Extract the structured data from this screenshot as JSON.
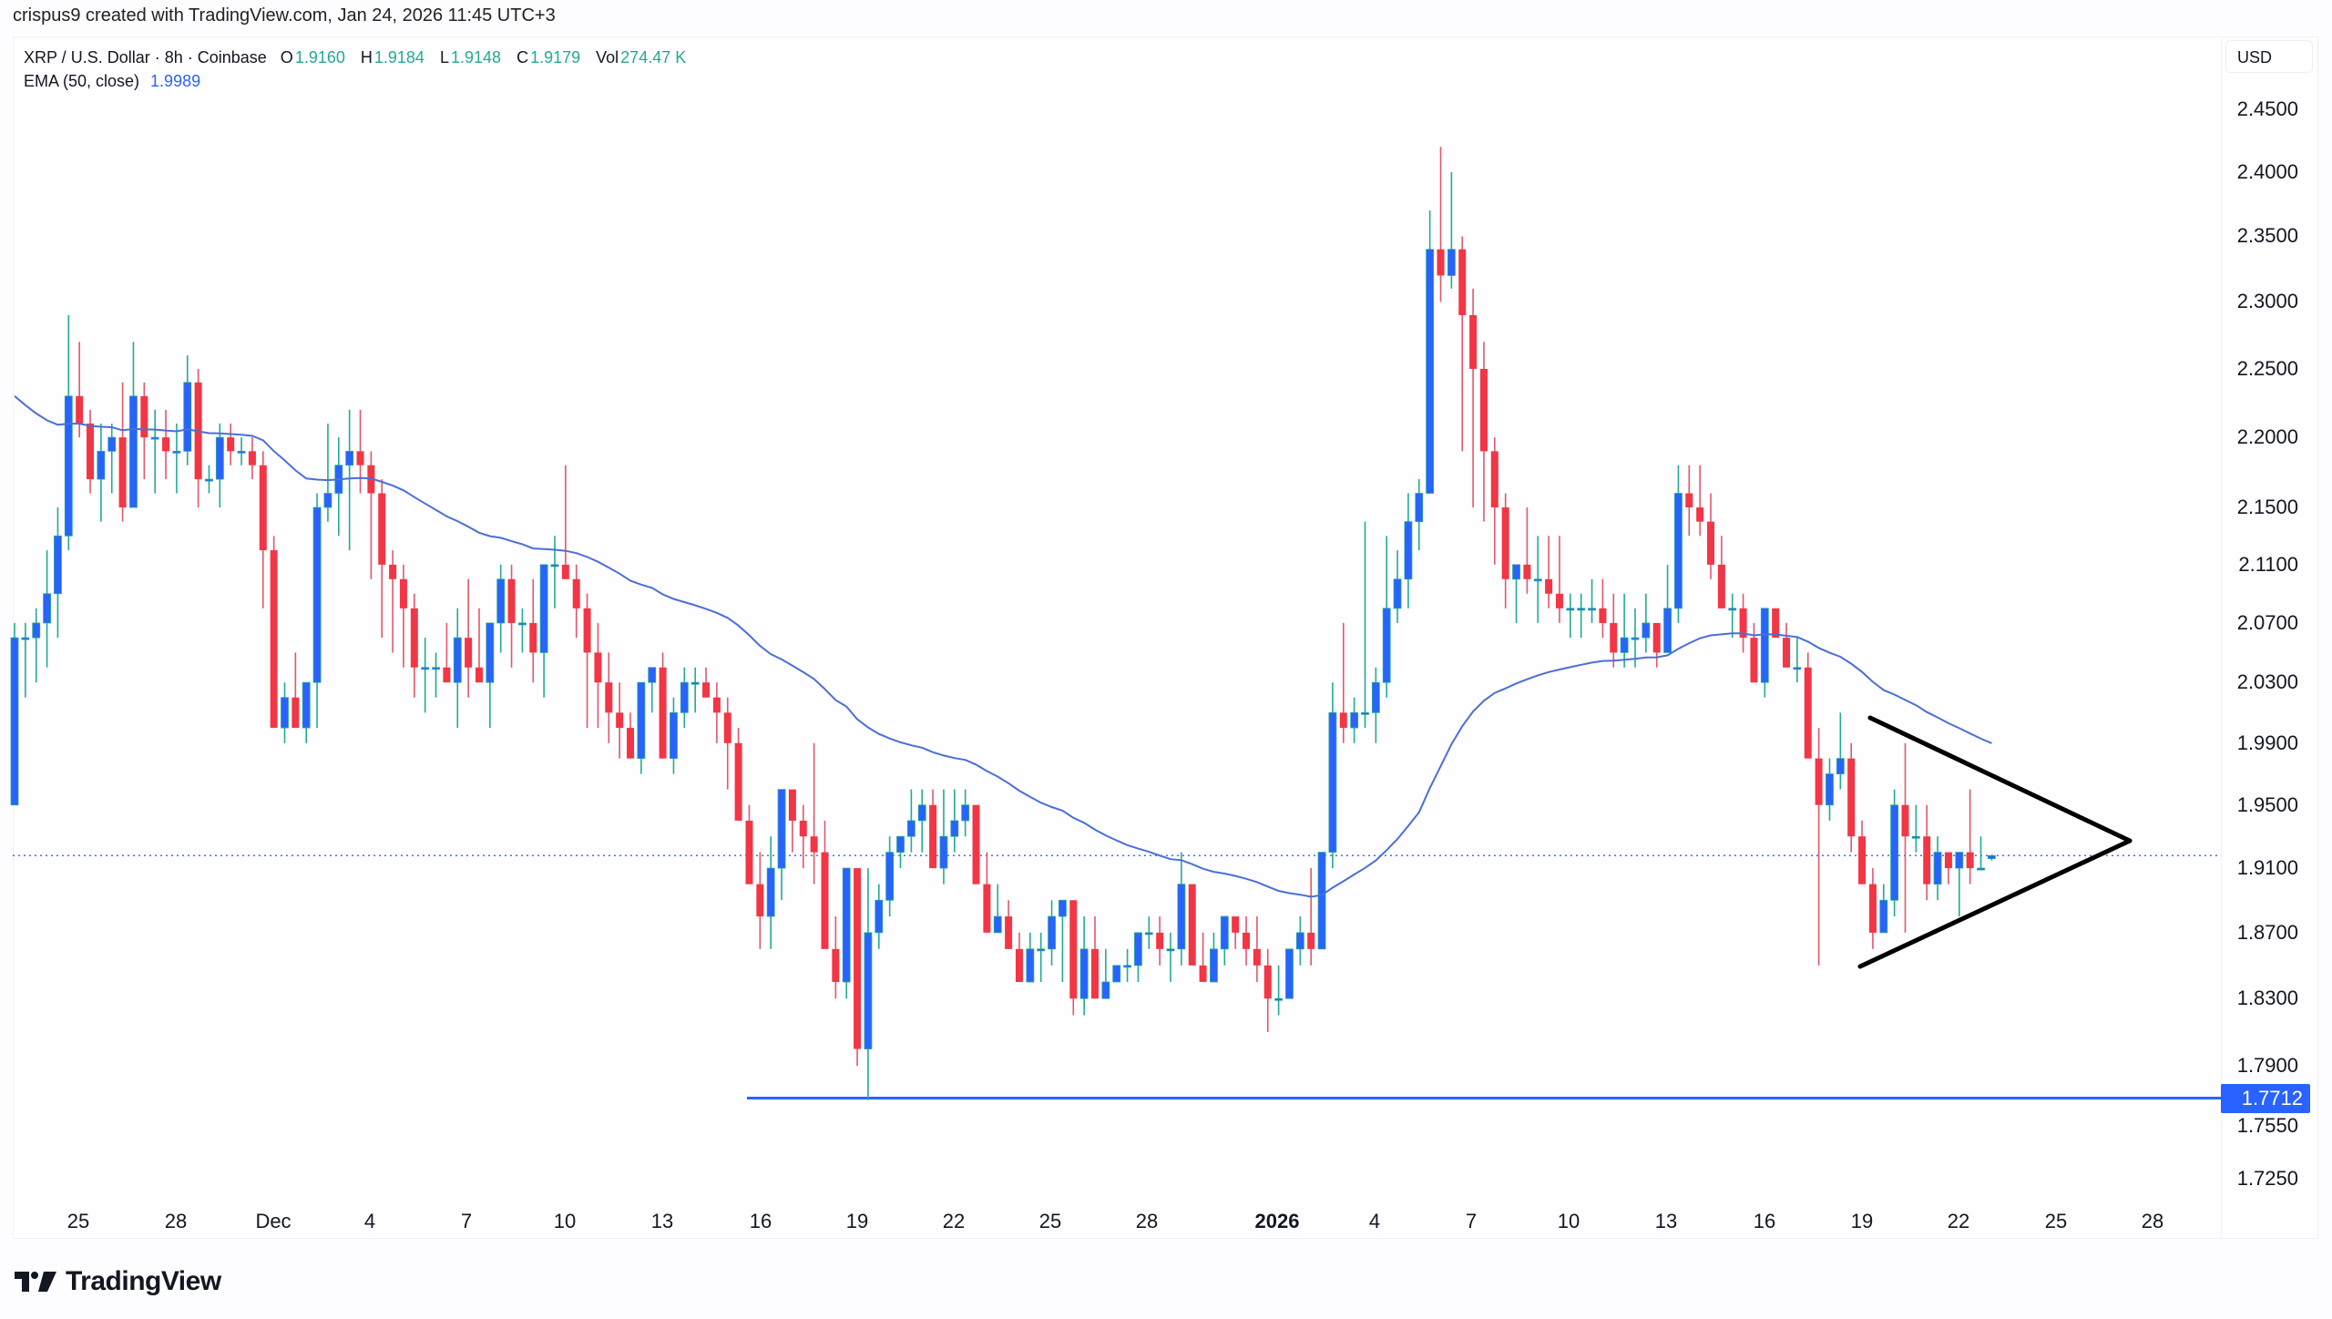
{
  "credit": "crispus9 created with TradingView.com, Jan 24, 2026 11:45 UTC+3",
  "legend": {
    "symbol": "XRP / U.S. Dollar · 8h · Coinbase",
    "open_label": "O",
    "open": "1.9160",
    "high_label": "H",
    "high": "1.9184",
    "low_label": "L",
    "low": "1.9148",
    "close_label": "C",
    "close": "1.9179",
    "vol_label": "Vol",
    "vol": "274.47 K",
    "ema_label": "EMA (50, close)",
    "ema_value": "1.9989"
  },
  "price_axis": {
    "currency": "USD",
    "ticks": [
      "2.4500",
      "2.4000",
      "2.3500",
      "2.3000",
      "2.2500",
      "2.2000",
      "2.1500",
      "2.1100",
      "2.0700",
      "2.0300",
      "1.9900",
      "1.9500",
      "1.9100",
      "1.8700",
      "1.8300",
      "1.7900",
      "1.7550",
      "1.7250"
    ],
    "support_tag": "1.7712"
  },
  "time_axis": {
    "labels": [
      "25",
      "28",
      "Dec",
      "4",
      "7",
      "10",
      "13",
      "16",
      "19",
      "22",
      "25",
      "28",
      "2026",
      "4",
      "7",
      "10",
      "13",
      "16",
      "19",
      "22",
      "25",
      "28"
    ]
  },
  "logo": {
    "text": "TradingView"
  },
  "colors": {
    "up": "#2962ff",
    "up_wick": "#22ab94",
    "down": "#f23645",
    "down_wick": "#e0586a",
    "ema": "#4a6fd8",
    "support": "#2962ff",
    "triangle": "#000000",
    "price_line": "#4a6fd8"
  },
  "chart_data": {
    "type": "candlestick",
    "title": "XRP / U.S. Dollar · 8h · Coinbase",
    "xlabel": "",
    "ylabel": "USD",
    "y_scale": "log",
    "ylim": [
      1.7,
      2.5
    ],
    "x_ticks": [
      "25",
      "28",
      "Dec",
      "4",
      "7",
      "10",
      "13",
      "16",
      "19",
      "22",
      "25",
      "28",
      "2026",
      "4",
      "7",
      "10",
      "13",
      "16",
      "19",
      "22",
      "25",
      "28"
    ],
    "y_ticks": [
      2.45,
      2.4,
      2.35,
      2.3,
      2.25,
      2.2,
      2.15,
      2.11,
      2.07,
      2.03,
      1.99,
      1.95,
      1.91,
      1.87,
      1.83,
      1.79,
      1.755,
      1.725
    ],
    "last": {
      "open": 1.916,
      "high": 1.9184,
      "low": 1.9148,
      "close": 1.9179,
      "volume": "274.47K"
    },
    "ema_50_last": 1.9989,
    "support_level": 1.7712,
    "annotations": [
      "horizontal support line at 1.7712",
      "symmetrical triangle pattern Jan 19–28"
    ],
    "ohlc": [
      [
        1.95,
        2.07,
        1.95,
        2.06
      ],
      [
        2.06,
        2.07,
        2.02,
        2.06
      ],
      [
        2.06,
        2.08,
        2.03,
        2.07
      ],
      [
        2.07,
        2.12,
        2.04,
        2.09
      ],
      [
        2.09,
        2.15,
        2.06,
        2.13
      ],
      [
        2.13,
        2.29,
        2.12,
        2.23
      ],
      [
        2.23,
        2.27,
        2.2,
        2.21
      ],
      [
        2.21,
        2.22,
        2.16,
        2.17
      ],
      [
        2.17,
        2.21,
        2.14,
        2.19
      ],
      [
        2.19,
        2.21,
        2.16,
        2.2
      ],
      [
        2.2,
        2.24,
        2.14,
        2.15
      ],
      [
        2.15,
        2.27,
        2.15,
        2.23
      ],
      [
        2.23,
        2.24,
        2.17,
        2.2
      ],
      [
        2.2,
        2.22,
        2.16,
        2.2
      ],
      [
        2.2,
        2.22,
        2.17,
        2.19
      ],
      [
        2.19,
        2.21,
        2.16,
        2.19
      ],
      [
        2.19,
        2.26,
        2.18,
        2.24
      ],
      [
        2.24,
        2.25,
        2.15,
        2.17
      ],
      [
        2.17,
        2.18,
        2.16,
        2.17
      ],
      [
        2.17,
        2.21,
        2.15,
        2.2
      ],
      [
        2.2,
        2.21,
        2.18,
        2.19
      ],
      [
        2.19,
        2.2,
        2.18,
        2.19
      ],
      [
        2.19,
        2.2,
        2.17,
        2.18
      ],
      [
        2.18,
        2.19,
        2.08,
        2.12
      ],
      [
        2.12,
        2.13,
        2.0,
        2.0
      ],
      [
        2.0,
        2.03,
        1.99,
        2.02
      ],
      [
        2.02,
        2.05,
        2.0,
        2.0
      ],
      [
        2.0,
        2.01,
        1.99,
        2.03
      ],
      [
        2.03,
        2.16,
        2.0,
        2.15
      ],
      [
        2.15,
        2.21,
        2.14,
        2.16
      ],
      [
        2.16,
        2.2,
        2.13,
        2.18
      ],
      [
        2.18,
        2.22,
        2.12,
        2.19
      ],
      [
        2.19,
        2.22,
        2.16,
        2.18
      ],
      [
        2.18,
        2.19,
        2.1,
        2.16
      ],
      [
        2.16,
        2.17,
        2.06,
        2.11
      ],
      [
        2.11,
        2.12,
        2.05,
        2.1
      ],
      [
        2.1,
        2.11,
        2.04,
        2.08
      ],
      [
        2.08,
        2.09,
        2.02,
        2.04
      ],
      [
        2.04,
        2.06,
        2.01,
        2.04
      ],
      [
        2.04,
        2.05,
        2.02,
        2.04
      ],
      [
        2.04,
        2.07,
        2.04,
        2.03
      ],
      [
        2.03,
        2.08,
        2.0,
        2.06
      ],
      [
        2.06,
        2.1,
        2.02,
        2.04
      ],
      [
        2.04,
        2.08,
        2.03,
        2.03
      ],
      [
        2.03,
        2.07,
        2.0,
        2.07
      ],
      [
        2.07,
        2.11,
        2.05,
        2.1
      ],
      [
        2.1,
        2.11,
        2.04,
        2.07
      ],
      [
        2.07,
        2.08,
        2.05,
        2.07
      ],
      [
        2.07,
        2.1,
        2.03,
        2.05
      ],
      [
        2.05,
        2.06,
        2.02,
        2.11
      ],
      [
        2.11,
        2.13,
        2.08,
        2.11
      ],
      [
        2.11,
        2.18,
        2.1,
        2.1
      ],
      [
        2.1,
        2.11,
        2.06,
        2.08
      ],
      [
        2.08,
        2.09,
        2.0,
        2.05
      ],
      [
        2.05,
        2.07,
        2.0,
        2.03
      ],
      [
        2.03,
        2.05,
        1.99,
        2.01
      ],
      [
        2.01,
        2.03,
        1.98,
        2.0
      ],
      [
        2.0,
        2.01,
        1.98,
        1.98
      ],
      [
        1.98,
        2.03,
        1.97,
        2.03
      ],
      [
        2.03,
        2.04,
        2.01,
        2.04
      ],
      [
        2.04,
        2.05,
        1.98,
        1.98
      ],
      [
        1.98,
        2.02,
        1.97,
        2.01
      ],
      [
        2.01,
        2.04,
        2.0,
        2.03
      ],
      [
        2.03,
        2.04,
        2.01,
        2.03
      ],
      [
        2.03,
        2.04,
        2.02,
        2.02
      ],
      [
        2.02,
        2.03,
        1.99,
        2.01
      ],
      [
        2.01,
        2.02,
        1.96,
        1.99
      ],
      [
        1.99,
        2.0,
        1.94,
        1.94
      ],
      [
        1.94,
        1.95,
        1.92,
        1.9
      ],
      [
        1.9,
        1.92,
        1.86,
        1.88
      ],
      [
        1.88,
        1.93,
        1.86,
        1.91
      ],
      [
        1.91,
        1.96,
        1.89,
        1.96
      ],
      [
        1.96,
        1.95,
        1.92,
        1.94
      ],
      [
        1.94,
        1.95,
        1.91,
        1.93
      ],
      [
        1.93,
        1.99,
        1.9,
        1.92
      ],
      [
        1.92,
        1.94,
        1.88,
        1.86
      ],
      [
        1.86,
        1.88,
        1.83,
        1.84
      ],
      [
        1.84,
        1.87,
        1.83,
        1.91
      ],
      [
        1.91,
        1.91,
        1.79,
        1.8
      ],
      [
        1.8,
        1.91,
        1.77,
        1.87
      ],
      [
        1.87,
        1.9,
        1.86,
        1.89
      ],
      [
        1.89,
        1.93,
        1.88,
        1.92
      ],
      [
        1.92,
        1.93,
        1.91,
        1.93
      ],
      [
        1.93,
        1.96,
        1.92,
        1.94
      ],
      [
        1.94,
        1.96,
        1.92,
        1.95
      ],
      [
        1.95,
        1.96,
        1.91,
        1.91
      ],
      [
        1.91,
        1.96,
        1.9,
        1.93
      ],
      [
        1.93,
        1.96,
        1.92,
        1.94
      ],
      [
        1.94,
        1.96,
        1.93,
        1.95
      ],
      [
        1.95,
        1.95,
        1.9,
        1.9
      ],
      [
        1.9,
        1.92,
        1.88,
        1.87
      ],
      [
        1.87,
        1.9,
        1.87,
        1.88
      ],
      [
        1.88,
        1.89,
        1.86,
        1.86
      ],
      [
        1.86,
        1.87,
        1.84,
        1.84
      ],
      [
        1.84,
        1.87,
        1.84,
        1.86
      ],
      [
        1.86,
        1.87,
        1.84,
        1.86
      ],
      [
        1.86,
        1.89,
        1.85,
        1.88
      ],
      [
        1.88,
        1.89,
        1.84,
        1.89
      ],
      [
        1.89,
        1.89,
        1.82,
        1.83
      ],
      [
        1.83,
        1.88,
        1.82,
        1.86
      ],
      [
        1.86,
        1.88,
        1.83,
        1.83
      ],
      [
        1.83,
        1.86,
        1.83,
        1.84
      ],
      [
        1.84,
        1.85,
        1.84,
        1.85
      ],
      [
        1.85,
        1.86,
        1.84,
        1.85
      ],
      [
        1.85,
        1.87,
        1.84,
        1.87
      ],
      [
        1.87,
        1.88,
        1.86,
        1.87
      ],
      [
        1.87,
        1.88,
        1.85,
        1.86
      ],
      [
        1.86,
        1.87,
        1.84,
        1.86
      ],
      [
        1.86,
        1.92,
        1.85,
        1.9
      ],
      [
        1.9,
        1.9,
        1.85,
        1.85
      ],
      [
        1.85,
        1.87,
        1.84,
        1.84
      ],
      [
        1.84,
        1.87,
        1.84,
        1.86
      ],
      [
        1.86,
        1.88,
        1.85,
        1.88
      ],
      [
        1.88,
        1.88,
        1.86,
        1.87
      ],
      [
        1.87,
        1.88,
        1.85,
        1.86
      ],
      [
        1.86,
        1.88,
        1.84,
        1.85
      ],
      [
        1.85,
        1.86,
        1.81,
        1.83
      ],
      [
        1.83,
        1.85,
        1.82,
        1.83
      ],
      [
        1.83,
        1.86,
        1.83,
        1.86
      ],
      [
        1.86,
        1.88,
        1.85,
        1.87
      ],
      [
        1.87,
        1.91,
        1.85,
        1.86
      ],
      [
        1.86,
        1.92,
        1.86,
        1.92
      ],
      [
        1.92,
        2.03,
        1.91,
        2.01
      ],
      [
        2.01,
        2.07,
        1.99,
        2.0
      ],
      [
        2.0,
        2.02,
        1.99,
        2.01
      ],
      [
        2.01,
        2.14,
        2.0,
        2.01
      ],
      [
        2.01,
        2.04,
        1.99,
        2.03
      ],
      [
        2.03,
        2.13,
        2.02,
        2.08
      ],
      [
        2.08,
        2.12,
        2.07,
        2.1
      ],
      [
        2.1,
        2.16,
        2.08,
        2.14
      ],
      [
        2.14,
        2.17,
        2.12,
        2.16
      ],
      [
        2.16,
        2.37,
        2.16,
        2.34
      ],
      [
        2.34,
        2.42,
        2.3,
        2.32
      ],
      [
        2.32,
        2.4,
        2.31,
        2.34
      ],
      [
        2.34,
        2.35,
        2.19,
        2.29
      ],
      [
        2.29,
        2.31,
        2.15,
        2.25
      ],
      [
        2.25,
        2.27,
        2.14,
        2.19
      ],
      [
        2.19,
        2.2,
        2.11,
        2.15
      ],
      [
        2.15,
        2.16,
        2.08,
        2.1
      ],
      [
        2.1,
        2.11,
        2.07,
        2.11
      ],
      [
        2.11,
        2.15,
        2.09,
        2.1
      ],
      [
        2.1,
        2.13,
        2.07,
        2.1
      ],
      [
        2.1,
        2.13,
        2.08,
        2.09
      ],
      [
        2.09,
        2.13,
        2.07,
        2.08
      ],
      [
        2.08,
        2.09,
        2.06,
        2.08
      ],
      [
        2.08,
        2.09,
        2.06,
        2.08
      ],
      [
        2.08,
        2.1,
        2.07,
        2.08
      ],
      [
        2.08,
        2.1,
        2.06,
        2.07
      ],
      [
        2.07,
        2.09,
        2.04,
        2.05
      ],
      [
        2.05,
        2.09,
        2.04,
        2.06
      ],
      [
        2.06,
        2.08,
        2.04,
        2.06
      ],
      [
        2.06,
        2.09,
        2.05,
        2.07
      ],
      [
        2.07,
        2.07,
        2.04,
        2.05
      ],
      [
        2.05,
        2.11,
        2.05,
        2.08
      ],
      [
        2.08,
        2.18,
        2.07,
        2.16
      ],
      [
        2.16,
        2.18,
        2.13,
        2.15
      ],
      [
        2.15,
        2.18,
        2.13,
        2.14
      ],
      [
        2.14,
        2.16,
        2.1,
        2.11
      ],
      [
        2.11,
        2.13,
        2.08,
        2.08
      ],
      [
        2.08,
        2.09,
        2.06,
        2.08
      ],
      [
        2.08,
        2.09,
        2.05,
        2.06
      ],
      [
        2.06,
        2.07,
        2.03,
        2.03
      ],
      [
        2.03,
        2.08,
        2.02,
        2.08
      ],
      [
        2.08,
        2.08,
        2.06,
        2.06
      ],
      [
        2.06,
        2.07,
        2.04,
        2.04
      ],
      [
        2.04,
        2.06,
        2.03,
        2.04
      ],
      [
        2.04,
        2.05,
        1.98,
        1.98
      ],
      [
        1.98,
        2.0,
        1.85,
        1.95
      ],
      [
        1.95,
        1.98,
        1.94,
        1.97
      ],
      [
        1.97,
        2.01,
        1.96,
        1.98
      ],
      [
        1.98,
        1.99,
        1.92,
        1.93
      ],
      [
        1.93,
        1.94,
        1.9,
        1.9
      ],
      [
        1.9,
        1.91,
        1.86,
        1.87
      ],
      [
        1.87,
        1.9,
        1.87,
        1.89
      ],
      [
        1.89,
        1.96,
        1.88,
        1.95
      ],
      [
        1.95,
        1.99,
        1.87,
        1.93
      ],
      [
        1.93,
        1.95,
        1.92,
        1.93
      ],
      [
        1.93,
        1.95,
        1.89,
        1.9
      ],
      [
        1.9,
        1.93,
        1.89,
        1.92
      ],
      [
        1.92,
        1.92,
        1.9,
        1.91
      ],
      [
        1.91,
        1.92,
        1.88,
        1.92
      ],
      [
        1.92,
        1.96,
        1.9,
        1.91
      ],
      [
        1.91,
        1.93,
        1.91,
        1.91
      ],
      [
        1.916,
        1.9184,
        1.9148,
        1.9179
      ]
    ]
  }
}
